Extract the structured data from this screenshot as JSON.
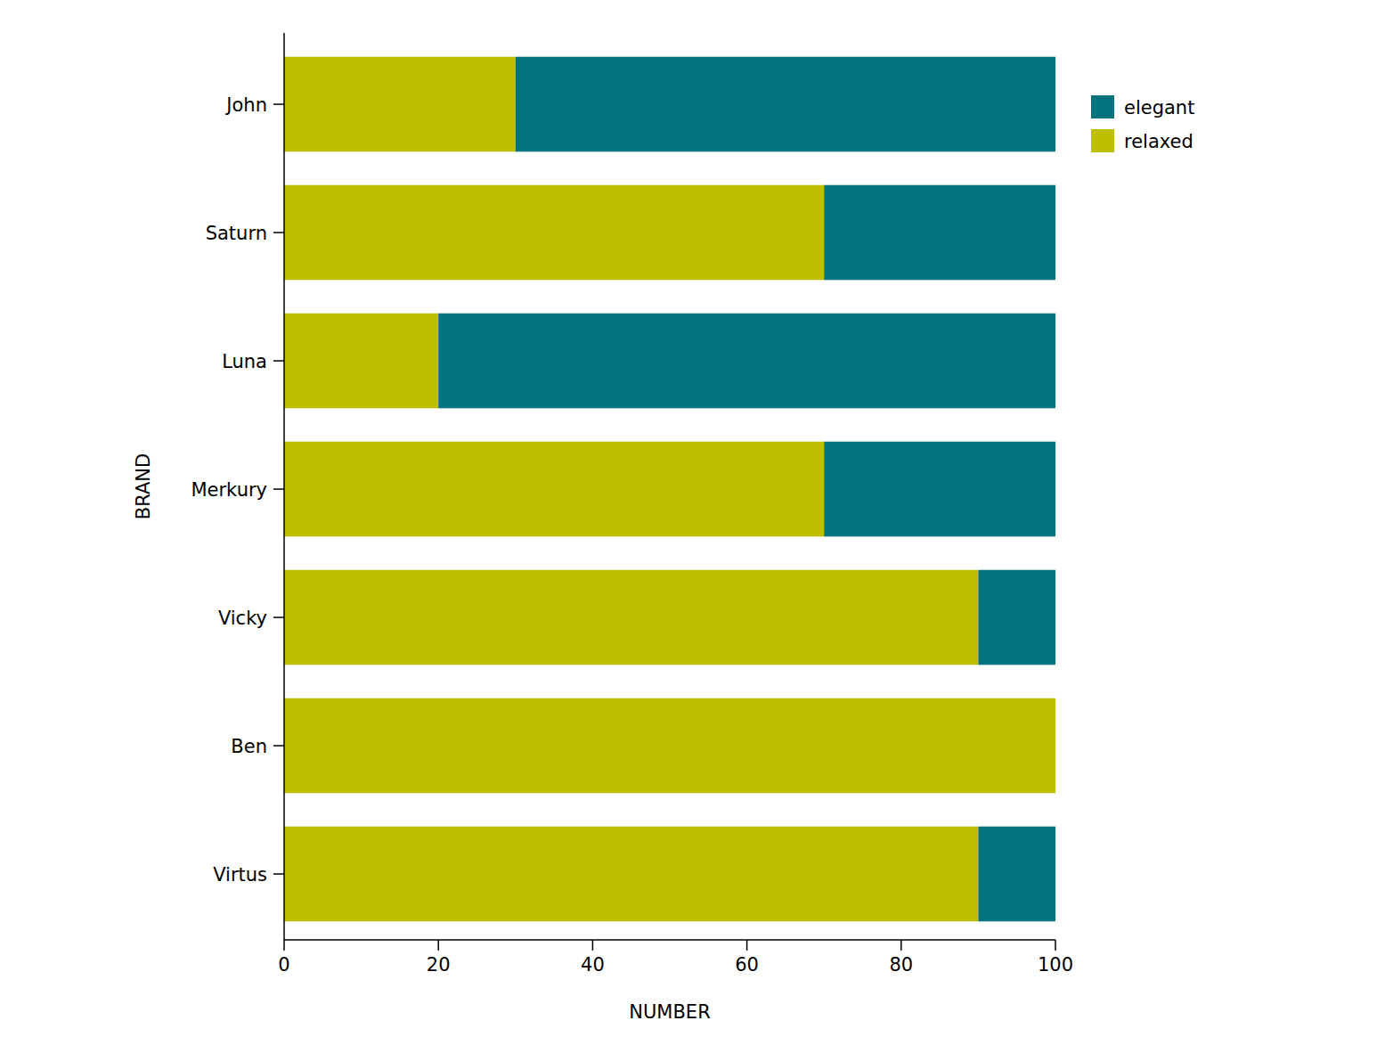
{
  "chart_data": {
    "type": "bar",
    "orientation": "horizontal",
    "stacked": true,
    "legend": "right",
    "grid": false,
    "x_label": "NUMBER",
    "y_label": "BRAND",
    "categories": [
      "John",
      "Saturn",
      "Luna",
      "Merkury",
      "Vicky",
      "Ben",
      "Virtus"
    ],
    "series": [
      {
        "name": "relaxed",
        "color": "#bdbf00",
        "values": [
          30,
          70,
          20,
          70,
          90,
          100,
          90
        ]
      },
      {
        "name": "elegant",
        "color": "#02737f",
        "values": [
          70,
          30,
          80,
          30,
          10,
          0,
          10
        ]
      }
    ],
    "xlim": [
      0,
      100
    ],
    "xticks": [
      0,
      20,
      40,
      60,
      80,
      100
    ]
  }
}
